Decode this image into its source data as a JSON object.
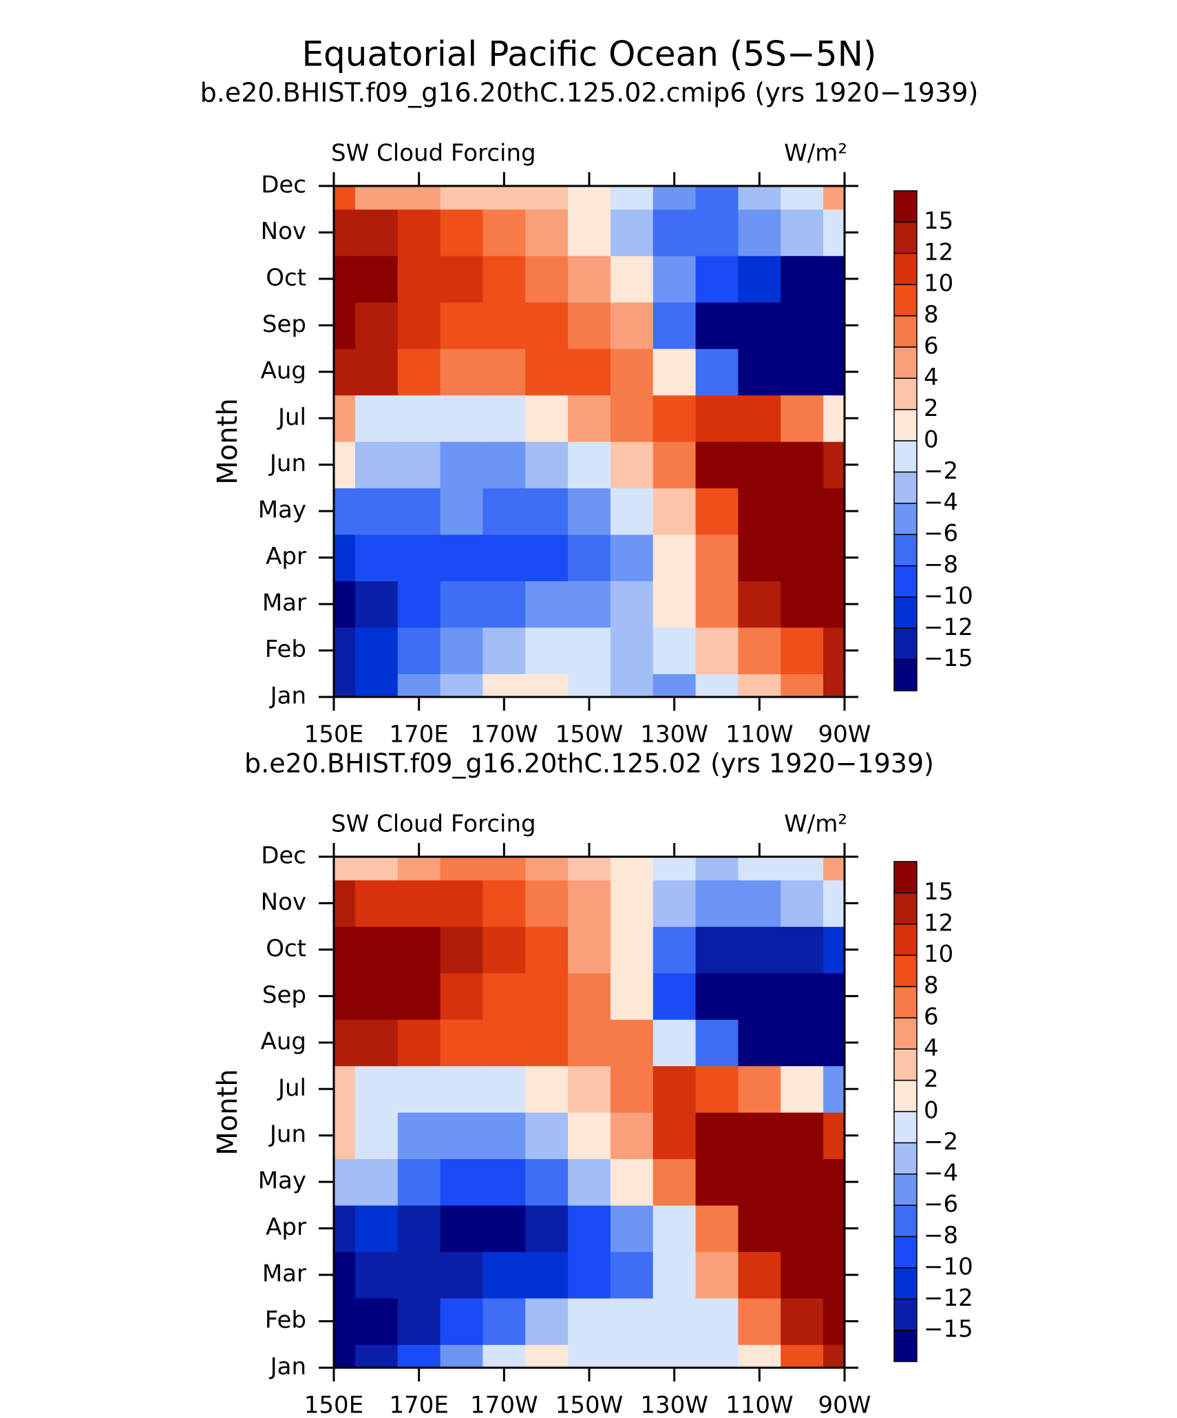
{
  "title": "Equatorial Pacific Ocean (5S−5N)",
  "chart_data": [
    {
      "type": "contour",
      "subtitle": "b.e20.BHIST.f09_g16.20thC.125.02.cmip6 (yrs 1920−1939)",
      "left_label": "SW Cloud Forcing",
      "units": "W/m²",
      "ylabel": "Month",
      "categories": [
        "Jan",
        "Feb",
        "Mar",
        "Apr",
        "May",
        "Jun",
        "Jul",
        "Aug",
        "Sep",
        "Oct",
        "Nov",
        "Dec"
      ],
      "x": [
        150,
        160,
        170,
        180,
        190,
        200,
        210,
        220,
        230,
        240,
        250,
        260,
        270
      ],
      "xlim": [
        150,
        270
      ],
      "xticks": [
        {
          "value": 150,
          "label": "150E"
        },
        {
          "value": 170,
          "label": "170E"
        },
        {
          "value": 190,
          "label": "170W"
        },
        {
          "value": 210,
          "label": "150W"
        },
        {
          "value": 230,
          "label": "130W"
        },
        {
          "value": 250,
          "label": "110W"
        },
        {
          "value": 270,
          "label": "90W"
        }
      ],
      "levels": [
        {
          "value": -15,
          "label": "−15"
        },
        {
          "value": -12,
          "label": "−12"
        },
        {
          "value": -10,
          "label": "−10"
        },
        {
          "value": -8,
          "label": "−8"
        },
        {
          "value": -6,
          "label": "−6"
        },
        {
          "value": -4,
          "label": "−4"
        },
        {
          "value": -2,
          "label": "−2"
        },
        0,
        2,
        4,
        6,
        8,
        10,
        12,
        15
      ],
      "colors": [
        "#00007f",
        "#0a1fa8",
        "#0033d6",
        "#1a4cf5",
        "#3d6ef5",
        "#6c95f5",
        "#a3bdf7",
        "#d6e4fb",
        "#fde7d7",
        "#fcc4a8",
        "#f9a07a",
        "#f77a49",
        "#ef4f1a",
        "#d8320d",
        "#b01d08",
        "#8b0000"
      ],
      "z": [
        [
          -14,
          -12,
          -6,
          -3,
          1,
          0,
          -2,
          -4,
          -6,
          -2,
          2,
          6,
          12
        ],
        [
          -14,
          -12,
          -8,
          -6,
          -4,
          -2,
          -2,
          -3,
          -2,
          2,
          6,
          8,
          12
        ],
        [
          -16,
          -14,
          -10,
          -8,
          -8,
          -6,
          -6,
          -4,
          0,
          6,
          12,
          15,
          16
        ],
        [
          -12,
          -10,
          -10,
          -10,
          -10,
          -10,
          -8,
          -5,
          0,
          6,
          16,
          16,
          16
        ],
        [
          -8,
          -8,
          -8,
          -6,
          -8,
          -8,
          -6,
          -2,
          2,
          8,
          16,
          16,
          16
        ],
        [
          0,
          -4,
          -4,
          -6,
          -6,
          -4,
          -2,
          2,
          6,
          16,
          16,
          16,
          12
        ],
        [
          4,
          -2,
          -2,
          -2,
          -2,
          0,
          4,
          6,
          8,
          10,
          10,
          6,
          0
        ],
        [
          12,
          12,
          8,
          6,
          6,
          8,
          8,
          6,
          0,
          -8,
          -16,
          -16,
          -16
        ],
        [
          15,
          12,
          10,
          8,
          8,
          8,
          6,
          4,
          -8,
          -16,
          -16,
          -16,
          -16
        ],
        [
          16,
          15,
          10,
          10,
          8,
          6,
          4,
          0,
          -6,
          -10,
          -12,
          -16,
          -16
        ],
        [
          12,
          12,
          10,
          8,
          6,
          4,
          0,
          -4,
          -8,
          -8,
          -6,
          -4,
          -2
        ],
        [
          8,
          4,
          4,
          2,
          2,
          2,
          0,
          -2,
          -6,
          -8,
          -4,
          -2,
          4
        ]
      ]
    },
    {
      "type": "contour",
      "subtitle": "b.e20.BHIST.f09_g16.20thC.125.02 (yrs 1920−1939)",
      "left_label": "SW Cloud Forcing",
      "units": "W/m²",
      "ylabel": "Month",
      "categories": [
        "Jan",
        "Feb",
        "Mar",
        "Apr",
        "May",
        "Jun",
        "Jul",
        "Aug",
        "Sep",
        "Oct",
        "Nov",
        "Dec"
      ],
      "x": [
        150,
        160,
        170,
        180,
        190,
        200,
        210,
        220,
        230,
        240,
        250,
        260,
        270
      ],
      "xlim": [
        150,
        270
      ],
      "xticks": [
        {
          "value": 150,
          "label": "150E"
        },
        {
          "value": 170,
          "label": "170E"
        },
        {
          "value": 190,
          "label": "170W"
        },
        {
          "value": 210,
          "label": "150W"
        },
        {
          "value": 230,
          "label": "130W"
        },
        {
          "value": 250,
          "label": "110W"
        },
        {
          "value": 270,
          "label": "90W"
        }
      ],
      "levels": [
        {
          "value": -15,
          "label": "−15"
        },
        {
          "value": -12,
          "label": "−12"
        },
        {
          "value": -10,
          "label": "−10"
        },
        {
          "value": -8,
          "label": "−8"
        },
        {
          "value": -6,
          "label": "−6"
        },
        {
          "value": -4,
          "label": "−4"
        },
        {
          "value": -2,
          "label": "−2"
        },
        0,
        2,
        4,
        6,
        8,
        10,
        12,
        15
      ],
      "colors": [
        "#00007f",
        "#0a1fa8",
        "#0033d6",
        "#1a4cf5",
        "#3d6ef5",
        "#6c95f5",
        "#a3bdf7",
        "#d6e4fb",
        "#fde7d7",
        "#fcc4a8",
        "#f9a07a",
        "#f77a49",
        "#ef4f1a",
        "#d8320d",
        "#b01d08",
        "#8b0000"
      ],
      "z": [
        [
          -16,
          -14,
          -10,
          -6,
          -2,
          0,
          -2,
          -2,
          -2,
          -2,
          0,
          8,
          14
        ],
        [
          -16,
          -16,
          -14,
          -10,
          -8,
          -4,
          -2,
          -2,
          -2,
          -2,
          6,
          12,
          16
        ],
        [
          -16,
          -14,
          -14,
          -14,
          -12,
          -12,
          -10,
          -8,
          -2,
          4,
          10,
          16,
          16
        ],
        [
          -14,
          -12,
          -14,
          -16,
          -16,
          -14,
          -10,
          -6,
          -2,
          6,
          16,
          16,
          16
        ],
        [
          -4,
          -4,
          -8,
          -10,
          -10,
          -8,
          -4,
          0,
          6,
          16,
          16,
          16,
          16
        ],
        [
          2,
          -2,
          -6,
          -6,
          -6,
          -4,
          0,
          4,
          10,
          16,
          16,
          16,
          10
        ],
        [
          2,
          -2,
          -2,
          -2,
          -2,
          0,
          2,
          6,
          10,
          8,
          6,
          0,
          -6
        ],
        [
          12,
          12,
          10,
          8,
          8,
          8,
          6,
          6,
          -2,
          -8,
          -16,
          -16,
          -16
        ],
        [
          16,
          16,
          15,
          10,
          8,
          8,
          6,
          0,
          -10,
          -16,
          -16,
          -16,
          -16
        ],
        [
          16,
          16,
          15,
          12,
          10,
          8,
          4,
          0,
          -8,
          -14,
          -14,
          -14,
          -12
        ],
        [
          12,
          10,
          10,
          10,
          8,
          6,
          4,
          0,
          -4,
          -6,
          -6,
          -4,
          -2
        ],
        [
          2,
          2,
          4,
          6,
          6,
          4,
          2,
          0,
          -2,
          -4,
          -2,
          -2,
          4
        ]
      ]
    }
  ]
}
